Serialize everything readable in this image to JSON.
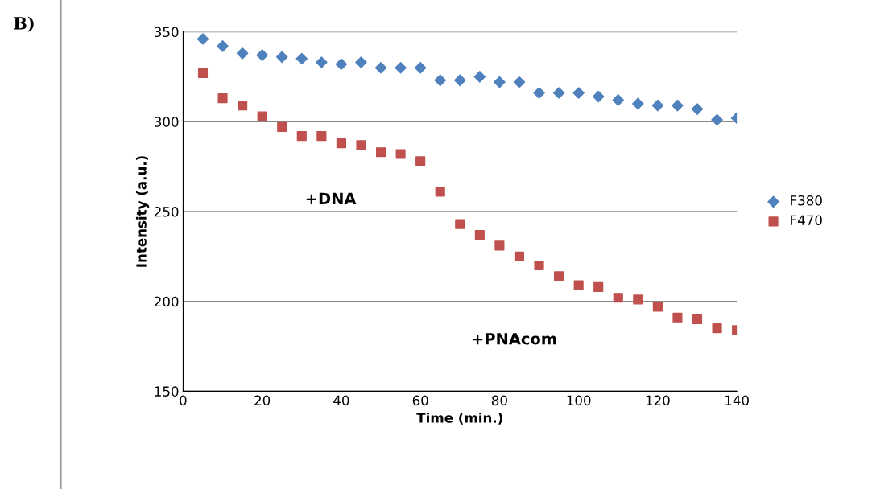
{
  "chart_data": {
    "type": "scatter",
    "xlabel": "Time (min.)",
    "ylabel": "Intensity (a.u.)",
    "x": [
      5,
      10,
      15,
      20,
      25,
      30,
      35,
      40,
      45,
      50,
      55,
      60,
      65,
      70,
      75,
      80,
      85,
      90,
      95,
      100,
      105,
      110,
      115,
      120,
      125,
      130,
      135,
      140
    ],
    "series": [
      {
        "name": "F380",
        "color": "#4f81bd",
        "marker": "diamond",
        "values": [
          346,
          342,
          338,
          337,
          336,
          335,
          333,
          332,
          333,
          330,
          330,
          330,
          323,
          323,
          325,
          322,
          322,
          316,
          316,
          316,
          314,
          312,
          310,
          309,
          309,
          307,
          301,
          302
        ]
      },
      {
        "name": "F470",
        "color": "#c0504d",
        "marker": "square",
        "values": [
          327,
          313,
          309,
          303,
          297,
          292,
          292,
          288,
          287,
          283,
          282,
          278,
          261,
          243,
          237,
          231,
          225,
          220,
          214,
          209,
          208,
          202,
          201,
          197,
          191,
          190,
          185,
          184
        ]
      }
    ],
    "xlim": [
      0,
      140
    ],
    "xticks": [
      0,
      20,
      40,
      60,
      80,
      100,
      120,
      140
    ],
    "ylim": [
      150,
      350
    ],
    "yticks": [
      150,
      200,
      250,
      300,
      350
    ],
    "grid": "y",
    "legend": "right",
    "annotations": [
      "B)",
      "+DNA",
      "+PNAcom"
    ]
  }
}
